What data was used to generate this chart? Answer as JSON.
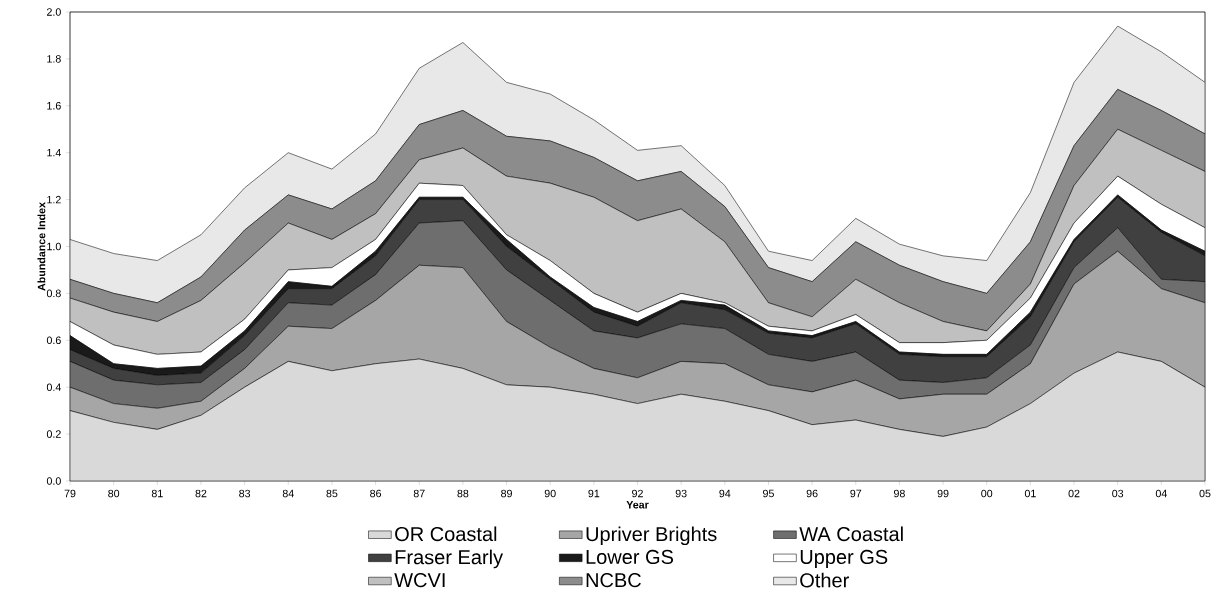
{
  "chart_data": {
    "type": "area",
    "stacked": true,
    "xlabel": "Year",
    "ylabel": "Abundance Index",
    "categories": [
      "79",
      "80",
      "81",
      "82",
      "83",
      "84",
      "85",
      "86",
      "87",
      "88",
      "89",
      "90",
      "91",
      "92",
      "93",
      "94",
      "95",
      "96",
      "97",
      "98",
      "99",
      "00",
      "01",
      "02",
      "03",
      "04",
      "05"
    ],
    "ylim": [
      0,
      2
    ],
    "yticks": [
      {
        "value": 0,
        "label": "0.0"
      },
      {
        "value": 0.2,
        "label": "0.2"
      },
      {
        "value": 0.4,
        "label": "0.4"
      },
      {
        "value": 0.6,
        "label": "0.6"
      },
      {
        "value": 0.8,
        "label": "0.8"
      },
      {
        "value": 1.0,
        "label": "1.0"
      },
      {
        "value": 1.2,
        "label": "1.2"
      },
      {
        "value": 1.4,
        "label": "1.4"
      },
      {
        "value": 1.6,
        "label": "1.6"
      },
      {
        "value": 1.8,
        "label": "1.8"
      },
      {
        "value": 2.0,
        "label": "2.0"
      }
    ],
    "grid": false,
    "legend": "bottom",
    "series": [
      {
        "name": "OR Coastal",
        "color": "#d9d9d9",
        "values": [
          0.3,
          0.25,
          0.22,
          0.28,
          0.4,
          0.51,
          0.47,
          0.5,
          0.52,
          0.48,
          0.41,
          0.4,
          0.37,
          0.33,
          0.37,
          0.34,
          0.3,
          0.24,
          0.26,
          0.22,
          0.19,
          0.23,
          0.33,
          0.46,
          0.55,
          0.51,
          0.4
        ]
      },
      {
        "name": "Upriver Brights",
        "color": "#a6a6a6",
        "values": [
          0.1,
          0.08,
          0.09,
          0.06,
          0.08,
          0.15,
          0.18,
          0.27,
          0.4,
          0.43,
          0.27,
          0.17,
          0.11,
          0.11,
          0.14,
          0.16,
          0.11,
          0.14,
          0.17,
          0.13,
          0.18,
          0.14,
          0.17,
          0.38,
          0.43,
          0.31,
          0.36
        ]
      },
      {
        "name": "WA Coastal",
        "color": "#6e6e6e",
        "values": [
          0.11,
          0.1,
          0.1,
          0.08,
          0.08,
          0.1,
          0.1,
          0.11,
          0.18,
          0.2,
          0.22,
          0.2,
          0.16,
          0.17,
          0.16,
          0.15,
          0.13,
          0.13,
          0.12,
          0.08,
          0.05,
          0.07,
          0.08,
          0.07,
          0.1,
          0.04,
          0.09
        ]
      },
      {
        "name": "Fraser Early",
        "color": "#404040",
        "values": [
          0.05,
          0.05,
          0.04,
          0.04,
          0.06,
          0.06,
          0.07,
          0.08,
          0.1,
          0.09,
          0.1,
          0.09,
          0.08,
          0.05,
          0.09,
          0.08,
          0.09,
          0.1,
          0.12,
          0.11,
          0.11,
          0.09,
          0.12,
          0.11,
          0.13,
          0.2,
          0.11
        ]
      },
      {
        "name": "Lower GS",
        "color": "#1a1a1a",
        "values": [
          0.06,
          0.02,
          0.03,
          0.03,
          0.02,
          0.03,
          0.01,
          0.02,
          0.01,
          0.01,
          0.03,
          0.01,
          0.02,
          0.02,
          0.01,
          0.02,
          0.01,
          0.01,
          0.01,
          0.01,
          0.01,
          0.01,
          0.02,
          0.01,
          0.01,
          0.01,
          0.02
        ]
      },
      {
        "name": "Upper GS",
        "color": "#ffffff",
        "values": [
          0.06,
          0.08,
          0.06,
          0.06,
          0.05,
          0.05,
          0.08,
          0.05,
          0.06,
          0.05,
          0.02,
          0.07,
          0.06,
          0.04,
          0.03,
          0.01,
          0.02,
          0.02,
          0.03,
          0.04,
          0.05,
          0.06,
          0.06,
          0.07,
          0.08,
          0.11,
          0.1
        ]
      },
      {
        "name": "WCVI",
        "color": "#c0c0c0",
        "values": [
          0.1,
          0.14,
          0.14,
          0.22,
          0.24,
          0.2,
          0.12,
          0.11,
          0.1,
          0.16,
          0.25,
          0.33,
          0.41,
          0.39,
          0.36,
          0.26,
          0.1,
          0.06,
          0.15,
          0.17,
          0.09,
          0.04,
          0.06,
          0.16,
          0.2,
          0.23,
          0.24
        ]
      },
      {
        "name": "NCBC",
        "color": "#8c8c8c",
        "values": [
          0.08,
          0.08,
          0.08,
          0.1,
          0.14,
          0.12,
          0.13,
          0.14,
          0.15,
          0.16,
          0.17,
          0.18,
          0.17,
          0.17,
          0.16,
          0.15,
          0.15,
          0.15,
          0.16,
          0.16,
          0.17,
          0.16,
          0.18,
          0.17,
          0.17,
          0.17,
          0.16
        ]
      },
      {
        "name": "Other",
        "color": "#e8e8e8",
        "values": [
          0.17,
          0.17,
          0.18,
          0.18,
          0.18,
          0.18,
          0.17,
          0.2,
          0.24,
          0.29,
          0.23,
          0.2,
          0.16,
          0.13,
          0.11,
          0.09,
          0.07,
          0.09,
          0.1,
          0.09,
          0.11,
          0.14,
          0.21,
          0.27,
          0.27,
          0.25,
          0.22
        ]
      }
    ]
  }
}
